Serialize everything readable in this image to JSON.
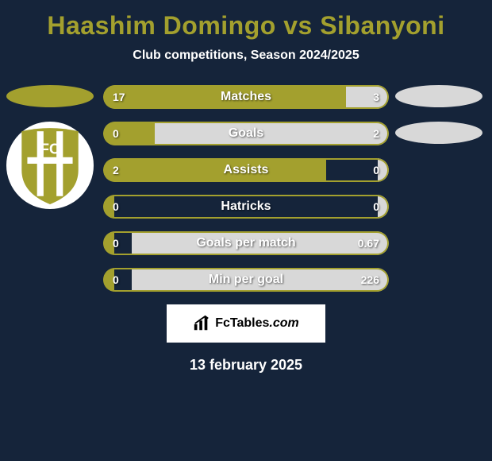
{
  "bg_color": "#15243a",
  "title_color": "#a3a02e",
  "left_color": "#a3a02e",
  "right_color": "#d8d8d8",
  "outline_color": "#a3a02e",
  "title": "Haashim Domingo vs Sibanyoni",
  "subtitle": "Club competitions, Season 2024/2025",
  "date": "13 february 2025",
  "logo_text": "FcTables",
  "logo_suffix": ".com",
  "crest_colors": {
    "gold": "#a3a02e",
    "white": "#ffffff"
  },
  "bars": [
    {
      "label": "Matches",
      "left": "17",
      "right": "3",
      "lw": 85,
      "rw": 15
    },
    {
      "label": "Goals",
      "left": "0",
      "right": "2",
      "lw": 18,
      "rw": 82
    },
    {
      "label": "Assists",
      "left": "2",
      "right": "0",
      "lw": 78,
      "rw": 4
    },
    {
      "label": "Hatricks",
      "left": "0",
      "right": "0",
      "lw": 4,
      "rw": 4
    },
    {
      "label": "Goals per match",
      "left": "0",
      "right": "0.67",
      "lw": 4,
      "rw": 90
    },
    {
      "label": "Min per goal",
      "left": "0",
      "right": "226",
      "lw": 4,
      "rw": 90
    }
  ]
}
